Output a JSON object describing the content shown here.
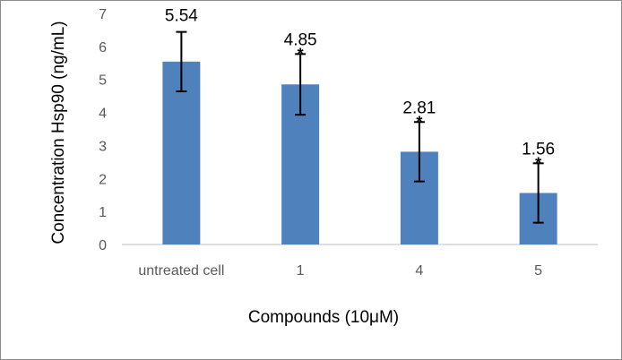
{
  "chart_data": {
    "type": "bar",
    "title": "",
    "xlabel": "Compounds (10μM)",
    "ylabel": "Concentration  Hsp90 (ng/mL)",
    "ylim": [
      0,
      7
    ],
    "yticks": [
      0,
      1,
      2,
      3,
      4,
      5,
      6,
      7
    ],
    "categories": [
      "untreated cell",
      "1",
      "4",
      "5"
    ],
    "values": [
      5.54,
      4.85,
      2.81,
      1.56
    ],
    "data_labels": [
      "5.54",
      "4.85",
      "2.81",
      "1.56"
    ],
    "error_bars": [
      0.9,
      0.92,
      0.9,
      0.9
    ],
    "significance": [
      "",
      "*",
      "*",
      "*"
    ],
    "bar_color": "#4f81bd",
    "grid": false,
    "legend": "none"
  }
}
